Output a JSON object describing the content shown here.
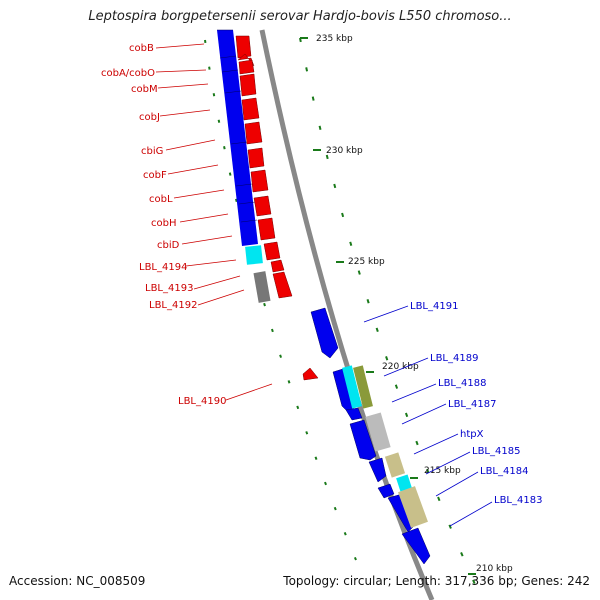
{
  "title": "Leptospira borgpetersenii serovar Hardjo-bovis L550 chromoso...",
  "footer": {
    "accession": "Accession: NC_008509",
    "summary": "Topology: circular; Length: 317,336 bp; Genes: 242"
  },
  "colors": {
    "backbone": "#888888",
    "forward_strand": "#0000ee",
    "reverse_strand": "#ee0000",
    "tick": "#1a7a1a",
    "label_forward": "#0000cc",
    "label_reverse": "#cc0000",
    "cyan": "#00e5f0",
    "gray": "#bbbbbb",
    "dark_gray": "#777777",
    "khaki": "#c8bf8a",
    "olive": "#8a9a3a"
  },
  "ticks": [
    {
      "label": "235 kbp"
    },
    {
      "label": "230 kbp"
    },
    {
      "label": "225 kbp"
    },
    {
      "label": "220 kbp"
    },
    {
      "label": "215 kbp"
    },
    {
      "label": "210 kbp"
    }
  ],
  "genes_reverse": [
    {
      "label": "cobB"
    },
    {
      "label": "cobA/cobO"
    },
    {
      "label": "cobM"
    },
    {
      "label": "cobJ"
    },
    {
      "label": "cbiG"
    },
    {
      "label": "cobF"
    },
    {
      "label": "cobL"
    },
    {
      "label": "cobH"
    },
    {
      "label": "cbiD"
    },
    {
      "label": "LBL_4194"
    },
    {
      "label": "LBL_4193"
    },
    {
      "label": "LBL_4192"
    },
    {
      "label": "LBL_4190"
    }
  ],
  "genes_forward": [
    {
      "label": "LBL_4191"
    },
    {
      "label": "LBL_4189"
    },
    {
      "label": "LBL_4188"
    },
    {
      "label": "LBL_4187"
    },
    {
      "label": "htpX"
    },
    {
      "label": "LBL_4185"
    },
    {
      "label": "LBL_4184"
    },
    {
      "label": "LBL_4183"
    }
  ]
}
